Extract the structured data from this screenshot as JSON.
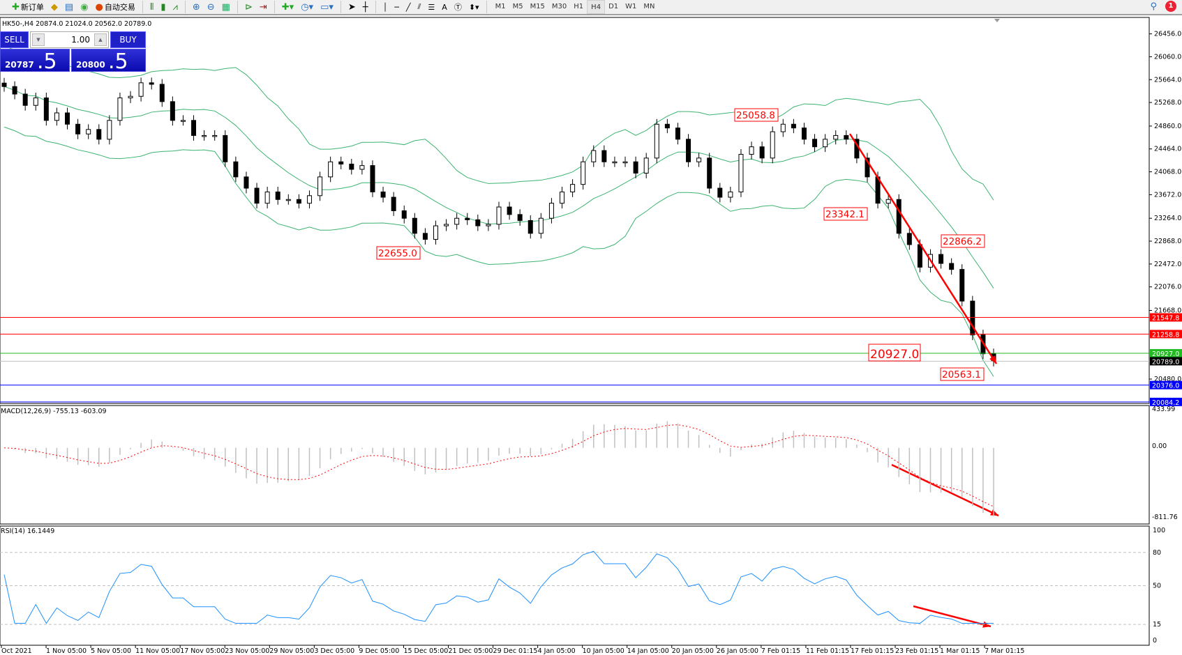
{
  "toolbar": {
    "new_order": "新订单",
    "auto_trading": "自动交易",
    "timeframes": [
      "M1",
      "M5",
      "M15",
      "M30",
      "H1",
      "H4",
      "D1",
      "W1",
      "MN"
    ],
    "active_timeframe": "H4",
    "notifications": "1"
  },
  "chart": {
    "title": "HK50-,H4  20874.0 21024.0 20562.0 20789.0",
    "symbol": "HK50-",
    "timeframe": "H4",
    "ohlc": {
      "open": 20874.0,
      "high": 21024.0,
      "low": 20562.0,
      "close": 20789.0
    }
  },
  "trade_panel": {
    "sell_label": "SELL",
    "buy_label": "BUY",
    "lot": "1.00",
    "sell_price_main": "20787",
    "sell_price_pips": ".5",
    "buy_price_main": "20800",
    "buy_price_pips": ".5"
  },
  "chart_data": {
    "type": "candlestick",
    "ylim": [
      20084.2,
      26700
    ],
    "price_ticks": [
      "26456.0",
      "26060.0",
      "25664.0",
      "25268.0",
      "24860.0",
      "24464.0",
      "24068.0",
      "23672.0",
      "23264.0",
      "22868.0",
      "22472.0",
      "22076.0",
      "21668.0",
      "20480.0"
    ],
    "time_ticks": [
      "Oct 2021",
      "1 Nov 05:00",
      "5 Nov 05:00",
      "11 Nov 05:00",
      "17 Nov 05:00",
      "23 Nov 05:00",
      "29 Nov 05:00",
      "3 Dec 05:00",
      "9 Dec 05:00",
      "15 Dec 05:00",
      "21 Dec 05:00",
      "29 Dec 01:15",
      "4 Jan 05:00",
      "10 Jan 05:00",
      "14 Jan 05:00",
      "20 Jan 05:00",
      "26 Jan 05:00",
      "7 Feb 01:15",
      "11 Feb 01:15",
      "17 Feb 01:15",
      "23 Feb 01:15",
      "1 Mar 01:15",
      "7 Mar 01:15"
    ],
    "close": [
      25544,
      25414,
      25218,
      25348,
      24958,
      25088,
      24892,
      24723,
      24801,
      24632,
      24958,
      25348,
      25375,
      25609,
      25583,
      25283,
      24958,
      24958,
      24697,
      24697,
      24697,
      24241,
      23980,
      23785,
      23524,
      23720,
      23589,
      23589,
      23524,
      23655,
      23980,
      24241,
      24202,
      24111,
      24176,
      23720,
      23628,
      23394,
      23264,
      23003,
      22899,
      23133,
      23159,
      23264,
      23238,
      23133,
      23159,
      23459,
      23329,
      23225,
      23003,
      23264,
      23524,
      23720,
      23850,
      24241,
      24436,
      24241,
      24241,
      24241,
      24045,
      24306,
      24892,
      24827,
      24632,
      24241,
      24306,
      23785,
      23628,
      23720,
      24371,
      24501,
      24306,
      24762,
      24892,
      24827,
      24632,
      24501,
      24632,
      24697,
      24632,
      24306,
      23980,
      23524,
      23589,
      23003,
      22808,
      22417,
      22638,
      22482,
      22378,
      21830,
      21244,
      20918,
      20789
    ],
    "indicators": {
      "bollinger": "Bands",
      "macd": {
        "label": "MACD(12,26,9) -755.13 -603.09",
        "ylim": [
          -811.76,
          433.99
        ],
        "ticks": [
          "433.99",
          "0.00",
          "-811.76"
        ]
      },
      "rsi": {
        "label": "RSI(14) 16.1449",
        "ylim": [
          0,
          100
        ],
        "ticks": [
          "100",
          "80",
          "50",
          "15",
          "0"
        ],
        "levels": [
          80,
          50,
          15
        ]
      }
    },
    "hlines": [
      {
        "price": 21547.8,
        "label": "21547.8",
        "color": "#ff0000"
      },
      {
        "price": 21258.8,
        "label": "21258.8",
        "color": "#ff0000"
      },
      {
        "price": 20927.0,
        "label": "20927.0",
        "color": "#22bb22"
      },
      {
        "price": 20789.0,
        "label": "20789.0",
        "color": "#c0c0c0",
        "label_bg": "#000000"
      },
      {
        "price": 20376.0,
        "label": "20376.0",
        "color": "#0000ff"
      },
      {
        "price": 20084.2,
        "label": "20084.2",
        "color": "#0000ff"
      }
    ],
    "annotations": [
      "25058.8",
      "23342.1",
      "22655.0",
      "22866.2",
      "20927.0",
      "20563.1"
    ],
    "colors": {
      "bands": "#3cb371",
      "arrow": "#ff0000",
      "macd_hist": "#c0c0c0",
      "macd_signal": "#ff0000",
      "rsi": "#1e90ff"
    }
  }
}
